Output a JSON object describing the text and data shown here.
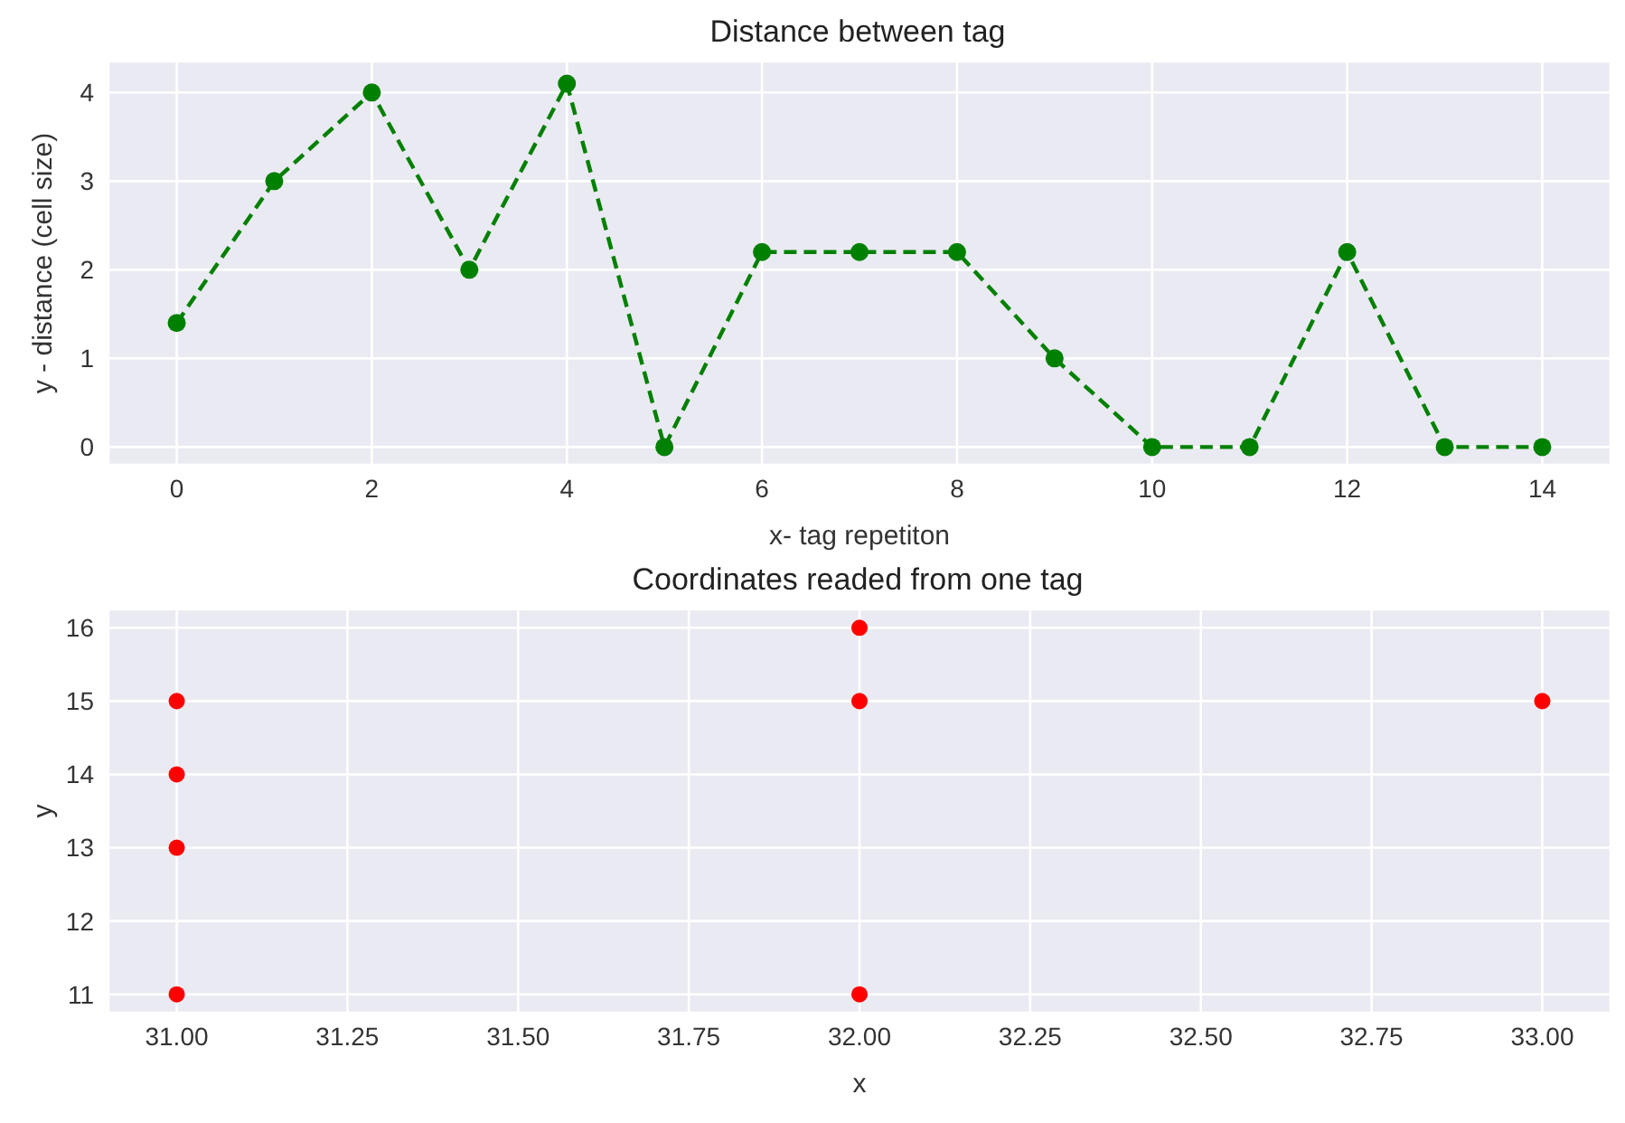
{
  "chart_data": [
    {
      "type": "line",
      "title": "Distance between tag",
      "xlabel": "x- tag repetiton",
      "ylabel": "y - distance (cell size)",
      "x": [
        0,
        1,
        2,
        3,
        4,
        5,
        6,
        7,
        8,
        9,
        10,
        11,
        12,
        13,
        14
      ],
      "values": [
        1.4,
        3,
        4,
        2,
        4.1,
        0,
        2.2,
        2.2,
        2.2,
        1,
        0,
        0,
        2.2,
        0,
        0
      ],
      "color": "#008000",
      "xlim": [
        -0.7,
        14.7
      ],
      "xticks": [
        0,
        2,
        4,
        6,
        8,
        10,
        12,
        14
      ],
      "ylim": [
        -0.2,
        4.35
      ],
      "yticks": [
        0,
        1,
        2,
        3,
        4
      ],
      "grid": true,
      "marker": "circle",
      "line_style": "dashed"
    },
    {
      "type": "scatter",
      "title": "Coordinates readed from one tag",
      "xlabel": "x",
      "ylabel": "y",
      "x": [
        31,
        31,
        31,
        31,
        32,
        32,
        32,
        33
      ],
      "values": [
        15,
        14,
        13,
        11,
        16,
        15,
        11,
        15
      ],
      "color": "#ff0000",
      "xlim": [
        30.9,
        33.1
      ],
      "xticks": [
        {
          "value": 31,
          "label": "31.00"
        },
        {
          "value": 31.25,
          "label": "31.25"
        },
        {
          "value": 31.5,
          "label": "31.50"
        },
        {
          "value": 31.75,
          "label": "31.75"
        },
        {
          "value": 32,
          "label": "32.00"
        },
        {
          "value": 32.25,
          "label": "32.25"
        },
        {
          "value": 32.5,
          "label": "32.50"
        },
        {
          "value": 32.75,
          "label": "32.75"
        },
        {
          "value": 33,
          "label": "33.00"
        }
      ],
      "ylim": [
        10.75,
        16.25
      ],
      "yticks": [
        11,
        12,
        13,
        14,
        15,
        16
      ],
      "grid": true,
      "marker": "circle"
    }
  ]
}
